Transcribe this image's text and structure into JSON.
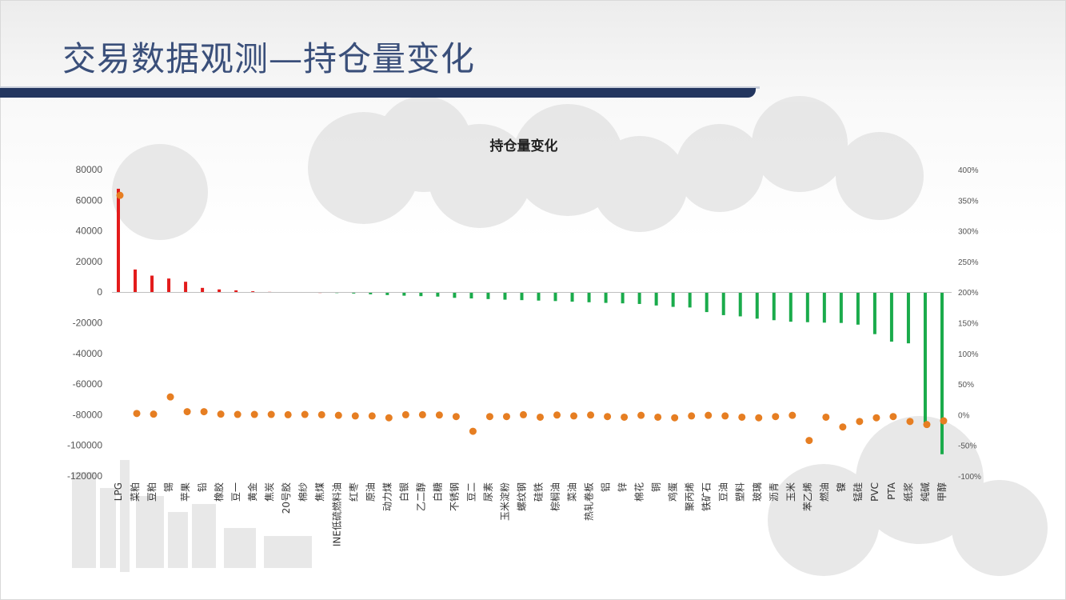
{
  "slide": {
    "title": "交易数据观测—持仓量变化"
  },
  "chart_data": {
    "type": "bar",
    "title": "持仓量变化",
    "xlabel": "",
    "ylabel": "",
    "ylim": [
      -120000,
      80000
    ],
    "y2lim": [
      -100,
      400
    ],
    "y_ticks": [
      "80000",
      "60000",
      "40000",
      "20000",
      "0",
      "-20000",
      "-40000",
      "-60000",
      "-80000",
      "-100000",
      "-120000"
    ],
    "y2_ticks": [
      "400%",
      "350%",
      "300%",
      "250%",
      "200%",
      "150%",
      "100%",
      "50%",
      "0%",
      "-50%",
      "-100%"
    ],
    "grid": false,
    "legend": "none",
    "colors": {
      "positive": "#e31b1b",
      "negative": "#1aab4b",
      "pct": "#e67e22"
    },
    "categories": [
      "LPG",
      "菜粕",
      "豆粕",
      "锡",
      "苹果",
      "铅",
      "橡胶",
      "豆一",
      "黄金",
      "焦炭",
      "20号胶",
      "棉纱",
      "焦煤",
      "INE低硫燃料油",
      "红枣",
      "原油",
      "动力煤",
      "白银",
      "乙二醇",
      "白糖",
      "不锈钢",
      "豆二",
      "尿素",
      "玉米淀粉",
      "螺纹钢",
      "硅铁",
      "棕榈油",
      "菜油",
      "热轧卷板",
      "铝",
      "锌",
      "棉花",
      "铜",
      "鸡蛋",
      "聚丙烯",
      "铁矿石",
      "豆油",
      "塑料",
      "玻璃",
      "沥青",
      "玉米",
      "苯乙烯",
      "燃油",
      "镍",
      "锰硅",
      "PVC",
      "PTA",
      "纸浆",
      "纯碱",
      "甲醇"
    ],
    "series": [
      {
        "values": [
          67500,
          14800,
          10800,
          8900,
          6800,
          2800,
          1800,
          1200,
          600,
          200,
          100,
          100,
          0,
          -600,
          -900,
          -1400,
          -1900,
          -2300,
          -2600,
          -2900,
          -3700,
          -4100,
          -4500,
          -4900,
          -5200,
          -5500,
          -5800,
          -6200,
          -6600,
          -7000,
          -7300,
          -7700,
          -8700,
          -9600,
          -10000,
          -13000,
          -15000,
          -15800,
          -17300,
          -18300,
          -19300,
          -19600,
          -19900,
          -20100,
          -21200,
          -27400,
          -32300,
          -33400,
          -85100,
          -105800
        ]
      },
      {
        "values": [
          358,
          2,
          1,
          29,
          5,
          5,
          1,
          0.5,
          0.5,
          0.5,
          0,
          0.5,
          0,
          -1,
          -2,
          -2,
          -5,
          0,
          0,
          -0.5,
          -3,
          -27,
          -3,
          -3,
          0,
          -4,
          -0.5,
          -2,
          -0.5,
          -3,
          -4,
          -1,
          -4,
          -5,
          -2,
          -1,
          -2,
          -4,
          -5,
          -3,
          -1,
          -42,
          -4,
          -20,
          -11,
          -5,
          -3,
          -11,
          -16,
          -10
        ]
      }
    ]
  }
}
